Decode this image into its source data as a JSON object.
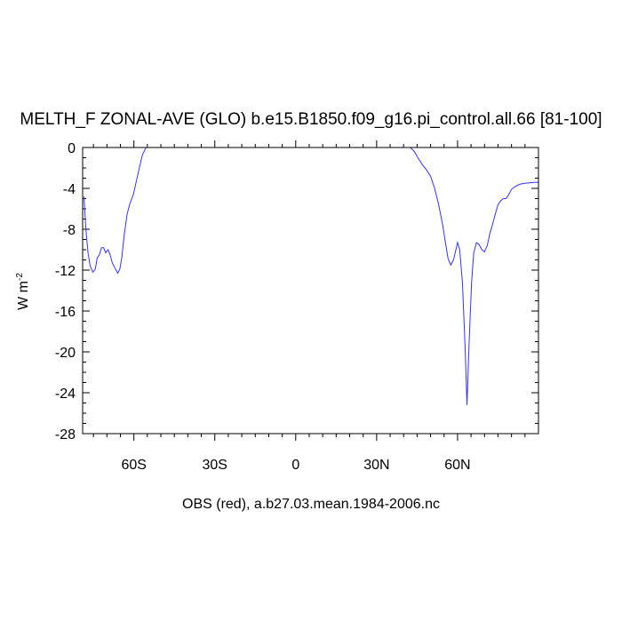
{
  "chart_data": {
    "type": "line",
    "title": "MELTH_F ZONAL-AVE (GLO) b.e15.B1850.f09_g16.pi_control.all.66 [81-100]",
    "ylabel": "W m",
    "ylabel_superscript": "-2",
    "footer": "OBS (red), a.b27.03.mean.1984-2006.nc",
    "xlim": [
      -79,
      90
    ],
    "ylim": [
      -28,
      0
    ],
    "x_ticks": [
      {
        "value": -60,
        "label": "60S"
      },
      {
        "value": -30,
        "label": "30S"
      },
      {
        "value": 0,
        "label": "0"
      },
      {
        "value": 30,
        "label": "30N"
      },
      {
        "value": 60,
        "label": "60N"
      }
    ],
    "y_ticks": [
      {
        "value": 0,
        "label": "0"
      },
      {
        "value": -4,
        "label": "-4"
      },
      {
        "value": -8,
        "label": "-8"
      },
      {
        "value": -12,
        "label": "-12"
      },
      {
        "value": -16,
        "label": "-16"
      },
      {
        "value": -20,
        "label": "-20"
      },
      {
        "value": -24,
        "label": "-24"
      },
      {
        "value": -28,
        "label": "-28"
      }
    ],
    "series": [
      {
        "color": "#3333ff",
        "points": [
          [
            -78.5,
            -4.8
          ],
          [
            -77.8,
            -8.0
          ],
          [
            -77.0,
            -10.3
          ],
          [
            -76.2,
            -11.6
          ],
          [
            -75.2,
            -12.2
          ],
          [
            -74.3,
            -11.9
          ],
          [
            -73.6,
            -10.8
          ],
          [
            -72.8,
            -10.5
          ],
          [
            -72.0,
            -9.8
          ],
          [
            -71.2,
            -9.8
          ],
          [
            -70.5,
            -10.3
          ],
          [
            -69.6,
            -10.0
          ],
          [
            -68.8,
            -10.5
          ],
          [
            -68.0,
            -11.3
          ],
          [
            -67.0,
            -11.8
          ],
          [
            -66.0,
            -12.3
          ],
          [
            -65.2,
            -11.9
          ],
          [
            -64.5,
            -10.8
          ],
          [
            -63.5,
            -8.4
          ],
          [
            -62.5,
            -6.5
          ],
          [
            -61.5,
            -5.5
          ],
          [
            -60.2,
            -4.6
          ],
          [
            -59.0,
            -3.2
          ],
          [
            -57.8,
            -1.8
          ],
          [
            -56.8,
            -0.7
          ],
          [
            -55.5,
            0.0
          ],
          [
            -54.5,
            0.0
          ],
          [
            42.5,
            0.0
          ],
          [
            44.0,
            -0.4
          ],
          [
            45.5,
            -1.1
          ],
          [
            47.0,
            -1.7
          ],
          [
            48.5,
            -2.2
          ],
          [
            50.0,
            -2.8
          ],
          [
            51.5,
            -4.0
          ],
          [
            53.0,
            -5.6
          ],
          [
            54.5,
            -7.6
          ],
          [
            55.5,
            -9.3
          ],
          [
            56.5,
            -10.9
          ],
          [
            57.5,
            -11.5
          ],
          [
            58.5,
            -11.0
          ],
          [
            59.3,
            -10.1
          ],
          [
            60.0,
            -9.3
          ],
          [
            60.8,
            -10.0
          ],
          [
            61.8,
            -13.2
          ],
          [
            62.8,
            -19.5
          ],
          [
            63.5,
            -25.2
          ],
          [
            64.3,
            -19.0
          ],
          [
            65.2,
            -13.2
          ],
          [
            66.0,
            -10.3
          ],
          [
            67.0,
            -9.3
          ],
          [
            68.0,
            -9.5
          ],
          [
            69.0,
            -10.0
          ],
          [
            70.0,
            -10.2
          ],
          [
            71.0,
            -9.6
          ],
          [
            72.0,
            -8.4
          ],
          [
            73.0,
            -7.5
          ],
          [
            74.0,
            -6.5
          ],
          [
            75.0,
            -5.6
          ],
          [
            76.0,
            -5.2
          ],
          [
            77.0,
            -5.0
          ],
          [
            78.0,
            -5.0
          ],
          [
            79.0,
            -4.6
          ],
          [
            80.0,
            -4.1
          ],
          [
            81.5,
            -3.8
          ],
          [
            83.0,
            -3.6
          ],
          [
            85.0,
            -3.5
          ],
          [
            87.0,
            -3.45
          ],
          [
            89.0,
            -3.4
          ],
          [
            90.0,
            -3.4
          ]
        ]
      }
    ]
  }
}
